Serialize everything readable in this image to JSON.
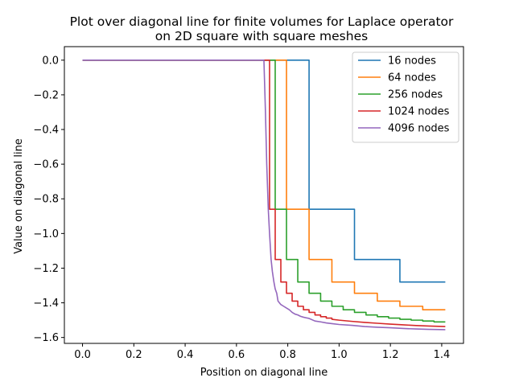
{
  "chart_data": {
    "type": "line",
    "title_line1": "Plot over diagonal line for finite volumes for Laplace operator",
    "title_line2": "on 2D square with square meshes",
    "xlabel": "Position on diagonal line",
    "ylabel": "Value on diagonal line",
    "xlim": [
      -0.0707,
      1.4849
    ],
    "ylim": [
      -1.634,
      0.078
    ],
    "xticks": [
      0.0,
      0.2,
      0.4,
      0.6,
      0.8,
      1.0,
      1.2,
      1.4
    ],
    "xtick_labels": [
      "0.0",
      "0.2",
      "0.4",
      "0.6",
      "0.8",
      "1.0",
      "1.2",
      "1.4"
    ],
    "yticks": [
      0.0,
      -0.2,
      -0.4,
      -0.6,
      -0.8,
      -1.0,
      -1.2,
      -1.4,
      -1.6
    ],
    "ytick_labels": [
      "0.0",
      "−0.2",
      "−0.4",
      "−0.6",
      "−0.8",
      "−1.0",
      "−1.2",
      "−1.4",
      "−1.6"
    ],
    "grid": false,
    "legend_position": "top-right",
    "series": [
      {
        "name": "16 nodes",
        "color": "#1f77b4",
        "x": [
          0.0,
          0.883,
          0.883,
          1.06,
          1.06,
          1.237,
          1.237,
          1.414
        ],
        "y": [
          0.0,
          0.0,
          -0.86,
          -0.86,
          -1.15,
          -1.15,
          -1.28,
          -1.28
        ]
      },
      {
        "name": "64 nodes",
        "color": "#ff7f0e",
        "x": [
          0.0,
          0.795,
          0.795,
          0.883,
          0.883,
          0.972,
          0.972,
          1.06,
          1.06,
          1.149,
          1.149,
          1.237,
          1.237,
          1.326,
          1.326,
          1.414
        ],
        "y": [
          0.0,
          0.0,
          -0.86,
          -0.86,
          -1.15,
          -1.15,
          -1.28,
          -1.28,
          -1.345,
          -1.345,
          -1.39,
          -1.39,
          -1.42,
          -1.42,
          -1.44,
          -1.44
        ],
        "note_hidden": ""
      },
      {
        "name": "256 nodes",
        "color": "#2ca02c",
        "x": [
          0.0,
          0.751,
          0.751,
          0.795,
          0.795,
          0.839,
          0.839,
          0.883,
          0.883,
          0.928,
          0.928,
          0.972,
          0.972,
          1.016,
          1.016,
          1.06,
          1.06,
          1.105,
          1.105,
          1.149,
          1.149,
          1.193,
          1.193,
          1.237,
          1.237,
          1.281,
          1.281,
          1.326,
          1.326,
          1.37,
          1.37,
          1.414
        ],
        "y": [
          0.0,
          0.0,
          -0.86,
          -0.86,
          -1.15,
          -1.15,
          -1.28,
          -1.28,
          -1.345,
          -1.345,
          -1.39,
          -1.39,
          -1.42,
          -1.42,
          -1.44,
          -1.44,
          -1.455,
          -1.455,
          -1.47,
          -1.47,
          -1.48,
          -1.48,
          -1.488,
          -1.488,
          -1.495,
          -1.495,
          -1.5,
          -1.5,
          -1.505,
          -1.505,
          -1.51,
          -1.51
        ]
      },
      {
        "name": "1024 nodes",
        "color": "#d62728",
        "x": [
          0.0,
          0.729,
          0.729,
          0.751,
          0.751,
          0.773,
          0.773,
          0.795,
          0.795,
          0.817,
          0.817,
          0.839,
          0.839,
          0.861,
          0.861,
          0.883,
          0.883,
          0.906,
          0.906,
          0.928,
          0.928,
          0.95,
          0.95,
          0.972,
          0.972,
          1.0,
          1.05,
          1.1,
          1.15,
          1.2,
          1.25,
          1.3,
          1.35,
          1.414
        ],
        "y": [
          0.0,
          0.0,
          -0.86,
          -0.86,
          -1.15,
          -1.15,
          -1.28,
          -1.28,
          -1.345,
          -1.345,
          -1.39,
          -1.39,
          -1.42,
          -1.42,
          -1.44,
          -1.44,
          -1.455,
          -1.455,
          -1.47,
          -1.47,
          -1.48,
          -1.48,
          -1.488,
          -1.488,
          -1.495,
          -1.5,
          -1.507,
          -1.513,
          -1.518,
          -1.523,
          -1.527,
          -1.531,
          -1.534,
          -1.537
        ]
      },
      {
        "name": "4096 nodes",
        "color": "#9467bd",
        "x": [
          0.0,
          0.707,
          0.713,
          0.718,
          0.724,
          0.729,
          0.735,
          0.74,
          0.746,
          0.751,
          0.757,
          0.762,
          0.773,
          0.784,
          0.795,
          0.806,
          0.817,
          0.828,
          0.839,
          0.85,
          0.861,
          0.883,
          0.906,
          0.928,
          0.95,
          0.972,
          1.0,
          1.05,
          1.1,
          1.15,
          1.2,
          1.25,
          1.3,
          1.35,
          1.414
        ],
        "y": [
          0.0,
          0.0,
          -0.3,
          -0.6,
          -0.86,
          -1.0,
          -1.15,
          -1.22,
          -1.28,
          -1.32,
          -1.345,
          -1.39,
          -1.41,
          -1.42,
          -1.43,
          -1.44,
          -1.455,
          -1.465,
          -1.47,
          -1.478,
          -1.483,
          -1.49,
          -1.505,
          -1.51,
          -1.516,
          -1.52,
          -1.525,
          -1.53,
          -1.537,
          -1.541,
          -1.544,
          -1.548,
          -1.551,
          -1.553,
          -1.555
        ]
      }
    ]
  }
}
